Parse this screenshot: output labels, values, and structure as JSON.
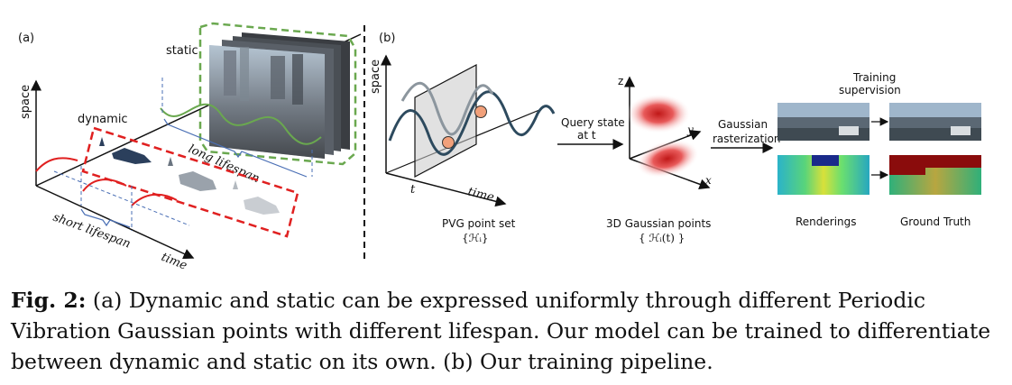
{
  "panel_a": {
    "label": "(a)",
    "static_label": "static",
    "dynamic_label": "dynamic",
    "space_label": "space",
    "time_label": "time",
    "long_lifespan": "long lifespan",
    "short_lifespan": "short lifespan"
  },
  "panel_b": {
    "label": "(b)",
    "space_label": "space",
    "t_label": "t",
    "time_label": "time",
    "pvg_title": "PVG point set",
    "pvg_math": "{ℋᵢ}",
    "query_line1": "Query state",
    "query_line2": "at t",
    "z_label": "z",
    "y_label": "y",
    "x_label": "x",
    "gauss_title": "3D Gaussian points",
    "gauss_math": "{ ℋᵢ(t) }",
    "raster_line1": "Gaussian",
    "raster_line2": "rasterization",
    "training_line1": "Training",
    "training_line2": "supervision",
    "renderings": "Renderings",
    "ground_truth": "Ground Truth"
  },
  "caption": {
    "figure_label": "Fig. 2:",
    "text": " (a) Dynamic and static can be expressed uniformly through different Periodic Vibration Gaussian points with different lifespan. Our model can be trained to differentiate between dynamic and static on its own. (b) Our training pipeline."
  },
  "colors": {
    "static_green": "#6aa84f",
    "dynamic_red": "#e02020",
    "axis_blue": "#4a6fb5",
    "gaussian_red": "#d93a3a"
  }
}
